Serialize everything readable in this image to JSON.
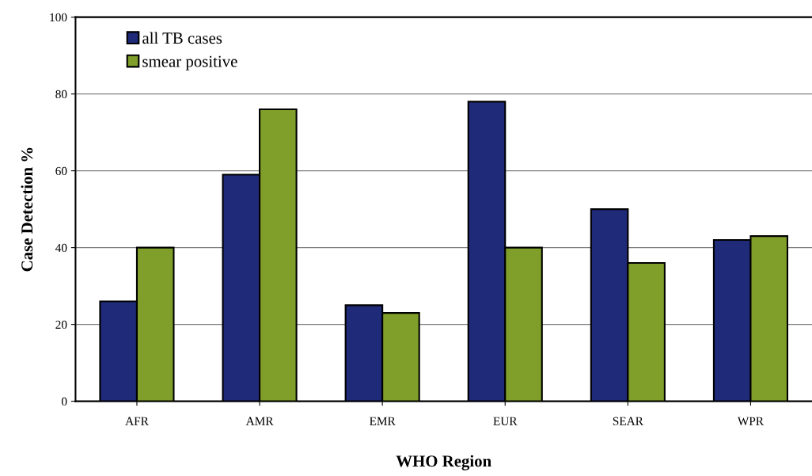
{
  "chart_data": {
    "type": "bar",
    "xlabel": "WHO Region",
    "ylabel": "Case Detection %",
    "categories": [
      "AFR",
      "AMR",
      "EMR",
      "EUR",
      "SEAR",
      "WPR"
    ],
    "series": [
      {
        "name": "all TB cases",
        "color": "#1f2a78",
        "values": [
          26,
          59,
          25,
          78,
          50,
          42
        ]
      },
      {
        "name": "smear positive",
        "color": "#7f9e2a",
        "values": [
          40,
          76,
          23,
          40,
          36,
          43
        ]
      }
    ],
    "ylim": [
      0,
      100
    ],
    "yticks": [
      0,
      20,
      40,
      60,
      80,
      100
    ],
    "grid": "y",
    "legend": "top left"
  }
}
